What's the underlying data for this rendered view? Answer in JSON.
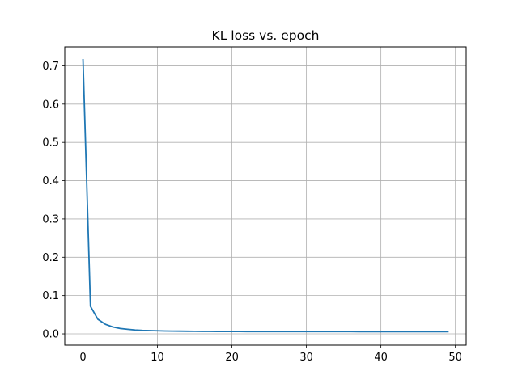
{
  "chart_data": {
    "type": "line",
    "title": "KL loss vs. epoch",
    "xlabel": "",
    "ylabel": "",
    "xlim": [
      -2.45,
      51.45
    ],
    "ylim": [
      -0.0295,
      0.7495
    ],
    "x_ticks": [
      0,
      10,
      20,
      30,
      40,
      50
    ],
    "y_ticks": [
      0.0,
      0.1,
      0.2,
      0.3,
      0.4,
      0.5,
      0.6,
      0.7
    ],
    "x_tick_labels": [
      "0",
      "10",
      "20",
      "30",
      "40",
      "50"
    ],
    "y_tick_labels": [
      "0.0",
      "0.1",
      "0.2",
      "0.3",
      "0.4",
      "0.5",
      "0.6",
      "0.7"
    ],
    "grid": true,
    "line_color": "#1f77b4",
    "grid_color": "#b0b0b0",
    "series": [
      {
        "x": [
          0,
          1,
          2,
          3,
          4,
          5,
          6,
          7,
          8,
          9,
          10,
          11,
          12,
          13,
          14,
          15,
          16,
          17,
          18,
          19,
          20,
          21,
          22,
          23,
          24,
          25,
          26,
          27,
          28,
          29,
          30,
          31,
          32,
          33,
          34,
          35,
          36,
          37,
          38,
          39,
          40,
          41,
          42,
          43,
          44,
          45,
          46,
          47,
          48,
          49
        ],
        "values": [
          0.716,
          0.072,
          0.038,
          0.025,
          0.018,
          0.014,
          0.012,
          0.01,
          0.009,
          0.0085,
          0.008,
          0.0075,
          0.0072,
          0.007,
          0.0068,
          0.0066,
          0.0065,
          0.0064,
          0.0063,
          0.0062,
          0.0061,
          0.0061,
          0.006,
          0.006,
          0.006,
          0.0059,
          0.0059,
          0.0059,
          0.0059,
          0.0058,
          0.0058,
          0.0058,
          0.0058,
          0.0058,
          0.0058,
          0.0058,
          0.0058,
          0.0057,
          0.0057,
          0.0057,
          0.0057,
          0.0057,
          0.0057,
          0.0057,
          0.0057,
          0.0057,
          0.0057,
          0.0057,
          0.0057,
          0.0057
        ]
      }
    ]
  }
}
